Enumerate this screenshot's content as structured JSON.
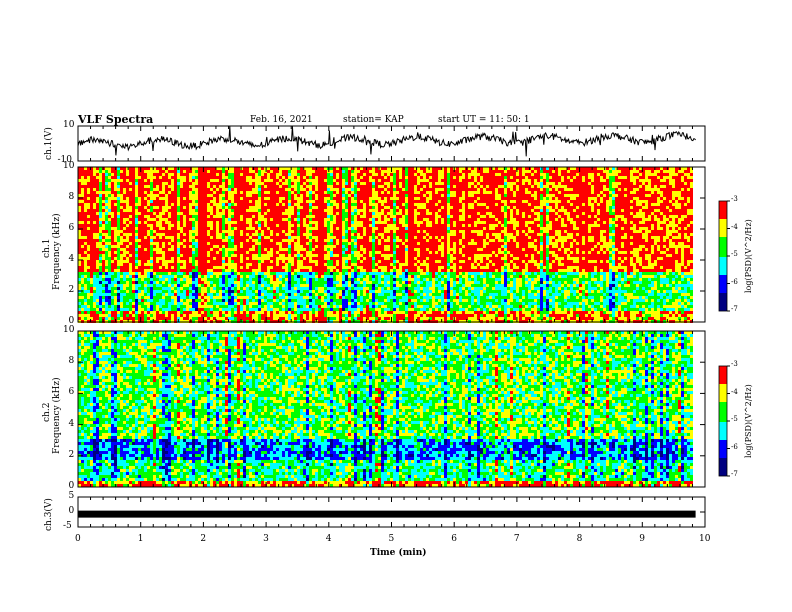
{
  "header": {
    "title": "VLF Spectra",
    "date": "Feb. 16, 2021",
    "station": "station= KAP",
    "start": "start  UT =   11: 50: 1"
  },
  "chart_data": [
    {
      "type": "line",
      "panel": "waveform-top",
      "ylabel": "ch.1(V)",
      "ylim": [
        -10,
        10
      ],
      "yticks": [
        "10",
        "-10"
      ],
      "xlim": [
        0,
        10
      ],
      "approx_level": [
        0,
        3
      ]
    },
    {
      "type": "heatmap",
      "panel": "spectrogram-ch1",
      "ylabel": "ch.1\nFrequency  (kHz)",
      "ylabel_line1": "ch.1",
      "ylabel_line2": "Frequency  (kHz)",
      "ylim": [
        0,
        10
      ],
      "yticks": [
        "0",
        "2",
        "4",
        "6",
        "8",
        "10"
      ],
      "xlim": [
        0,
        9.8
      ],
      "colorbar": {
        "label": "log(PSD)(V^2/Hz)",
        "range": [
          -7,
          -3
        ],
        "ticks": [
          "-3",
          "-4",
          "-5",
          "-6",
          "-7"
        ]
      },
      "bands": [
        {
          "f": [
            0,
            0.7
          ],
          "level": -3.7
        },
        {
          "f": [
            0.7,
            3.3
          ],
          "level": -4.8
        },
        {
          "f": [
            3.3,
            10
          ],
          "level": -3.5
        }
      ]
    },
    {
      "type": "heatmap",
      "panel": "spectrogram-ch2",
      "ylabel_line1": "ch.2",
      "ylabel_line2": "Frequency  (kHz)",
      "ylim": [
        0,
        10
      ],
      "yticks": [
        "0",
        "2",
        "4",
        "6",
        "8",
        "10"
      ],
      "xlim": [
        0,
        9.8
      ],
      "colorbar": {
        "label": "log(PSD)(V^2/Hz)",
        "range": [
          -7,
          -3
        ],
        "ticks": [
          "-3",
          "-4",
          "-5",
          "-6",
          "-7"
        ]
      },
      "bands": [
        {
          "f": [
            0,
            0.3
          ],
          "level": -3.6
        },
        {
          "f": [
            0.3,
            1.8
          ],
          "level": -4.9
        },
        {
          "f": [
            1.8,
            3.0
          ],
          "level": -5.6
        },
        {
          "f": [
            3.0,
            10
          ],
          "level": -4.6
        }
      ]
    },
    {
      "type": "line",
      "panel": "waveform-bottom",
      "ylabel": "ch.3(V)",
      "ylim": [
        -5,
        5
      ],
      "yticks": [
        "5",
        "0",
        "-5"
      ],
      "xlim": [
        0,
        10
      ],
      "approx_level": [
        -0.7,
        -0.7
      ]
    }
  ],
  "xaxis": {
    "label": "Time  (min)",
    "ticks": [
      "0",
      "1",
      "2",
      "3",
      "4",
      "5",
      "6",
      "7",
      "8",
      "9",
      "10"
    ]
  },
  "colors": {
    "colormap": [
      "#000080",
      "#0000ff",
      "#00ffff",
      "#00ff00",
      "#ffff00",
      "#ff0000",
      "#ffffff"
    ]
  }
}
